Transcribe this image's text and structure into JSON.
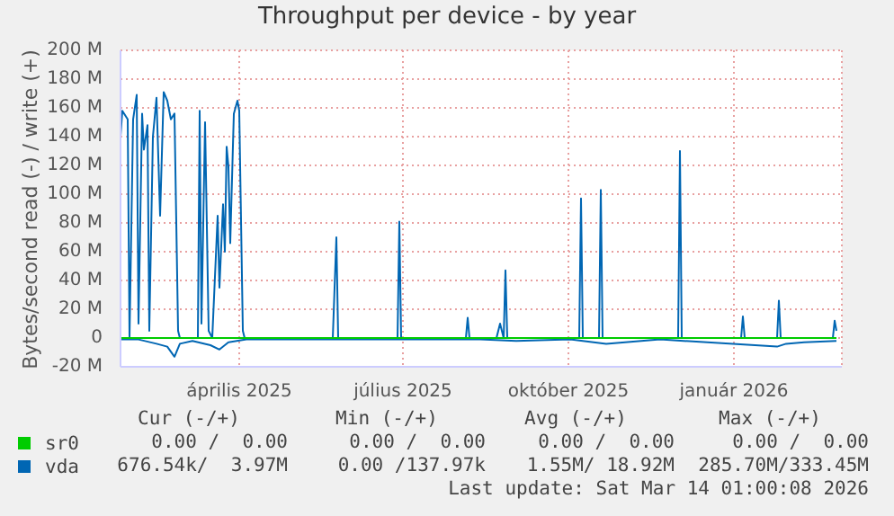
{
  "chart_data": {
    "type": "line",
    "title": "Throughput per device - by year",
    "ylabel": "Bytes/second read (-) / write (+)",
    "xlim": [
      "2025-02-09",
      "2026-03-17"
    ],
    "xticks": [
      {
        "value": "2025-04-16",
        "label": "április 2025"
      },
      {
        "value": "2025-07-16",
        "label": "július 2025"
      },
      {
        "value": "2025-10-16",
        "label": "október 2025"
      },
      {
        "value": "2026-01-16",
        "label": "január 2026"
      }
    ],
    "ylim": [
      -20,
      200
    ],
    "yticks": [
      {
        "value": -20,
        "label": "-20 M"
      },
      0,
      {
        "value": 20,
        "label": "20 M"
      },
      {
        "value": 40,
        "label": "40 M"
      },
      {
        "value": 60,
        "label": "60 M"
      },
      {
        "value": 80,
        "label": "80 M"
      },
      {
        "value": 100,
        "label": "100 M"
      },
      {
        "value": 120,
        "label": "120 M"
      },
      {
        "value": 140,
        "label": "140 M"
      },
      {
        "value": 160,
        "label": "160 M"
      },
      {
        "value": 180,
        "label": "180 M"
      },
      {
        "value": 200,
        "label": "200 M"
      }
    ],
    "grid": true,
    "legend": "bottom left",
    "marker": "none",
    "line_style": "solid",
    "series": [
      {
        "name": "sr0",
        "color": "#00cc00",
        "x": [
          "2025-02-09",
          "2026-03-14"
        ],
        "values": [
          0,
          0
        ]
      },
      {
        "name": "vda",
        "color": "#0066b3",
        "x": [
          "2025-02-09",
          "2025-02-10",
          "2025-02-13",
          "2025-02-14",
          "2025-02-16",
          "2025-02-18",
          "2025-02-19",
          "2025-02-21",
          "2025-02-22",
          "2025-02-24",
          "2025-02-25",
          "2025-02-27",
          "2025-03-01",
          "2025-03-03",
          "2025-03-05",
          "2025-03-07",
          "2025-03-09",
          "2025-03-11",
          "2025-03-13",
          "2025-03-14",
          "2025-03-24",
          "2025-03-25",
          "2025-03-26",
          "2025-03-28",
          "2025-03-30",
          "2025-04-01",
          "2025-04-04",
          "2025-04-05",
          "2025-04-07",
          "2025-04-08",
          "2025-04-09",
          "2025-04-10",
          "2025-04-11",
          "2025-04-13",
          "2025-04-15",
          "2025-04-16",
          "2025-04-18",
          "2025-04-19",
          "2025-06-07",
          "2025-06-09",
          "2025-06-10",
          "2025-07-13",
          "2025-07-14",
          "2025-07-15",
          "2025-08-20",
          "2025-08-21",
          "2025-08-22",
          "2025-09-06",
          "2025-09-08",
          "2025-09-10",
          "2025-09-11",
          "2025-09-12",
          "2025-10-22",
          "2025-10-23",
          "2025-10-24",
          "2025-11-02",
          "2025-11-03",
          "2025-11-04",
          "2025-12-16",
          "2025-12-17",
          "2025-12-18",
          "2026-01-20",
          "2026-01-21",
          "2026-01-22",
          "2026-02-09",
          "2026-02-10",
          "2026-02-11",
          "2026-03-12",
          "2026-03-13",
          "2026-03-14"
        ],
        "values": [
          140,
          158,
          152,
          0,
          152,
          169,
          10,
          156,
          131,
          148,
          5,
          140,
          167,
          85,
          171,
          165,
          152,
          156,
          5,
          0,
          0,
          158,
          10,
          150,
          5,
          0,
          85,
          35,
          93,
          60,
          133,
          119,
          66,
          156,
          165,
          158,
          5,
          0,
          0,
          70,
          0,
          0,
          81,
          0,
          0,
          14,
          0,
          0,
          10,
          0,
          47,
          0,
          0,
          97,
          0,
          0,
          103,
          0,
          0,
          130,
          0,
          0,
          15,
          0,
          0,
          26,
          0,
          0,
          12,
          5
        ]
      },
      {
        "color": "#0066b3",
        "x": [
          "2025-02-09",
          "2025-02-19",
          "2025-03-01",
          "2025-03-07",
          "2025-03-11",
          "2025-03-14",
          "2025-03-21",
          "2025-03-31",
          "2025-04-05",
          "2025-04-10",
          "2025-04-20",
          "2025-05-21",
          "2025-07-09",
          "2025-08-28",
          "2025-09-17",
          "2025-10-17",
          "2025-11-06",
          "2025-12-06",
          "2026-02-09",
          "2026-02-14",
          "2026-02-24",
          "2026-03-14"
        ],
        "values": [
          -1,
          -1,
          -4,
          -6,
          -13,
          -4,
          -2,
          -5,
          -8,
          -3,
          -1,
          -1,
          -1,
          -1,
          -2,
          -1,
          -4,
          -1,
          -6,
          -4,
          -3,
          -2
        ]
      }
    ],
    "annotations": [
      "Cur (-/+)",
      "Min (-/+)",
      "Avg (-/+)",
      "Max (-/+)",
      "0.00 /  0.00",
      "0.00 /  0.00",
      "0.00 /  0.00",
      "0.00 /  0.00",
      "676.54k/  3.97M",
      "0.00 /137.97k",
      "1.55M/ 18.92M",
      "285.70M/333.45M",
      "Last update: Sat Mar 14 01:00:08 2026"
    ]
  }
}
